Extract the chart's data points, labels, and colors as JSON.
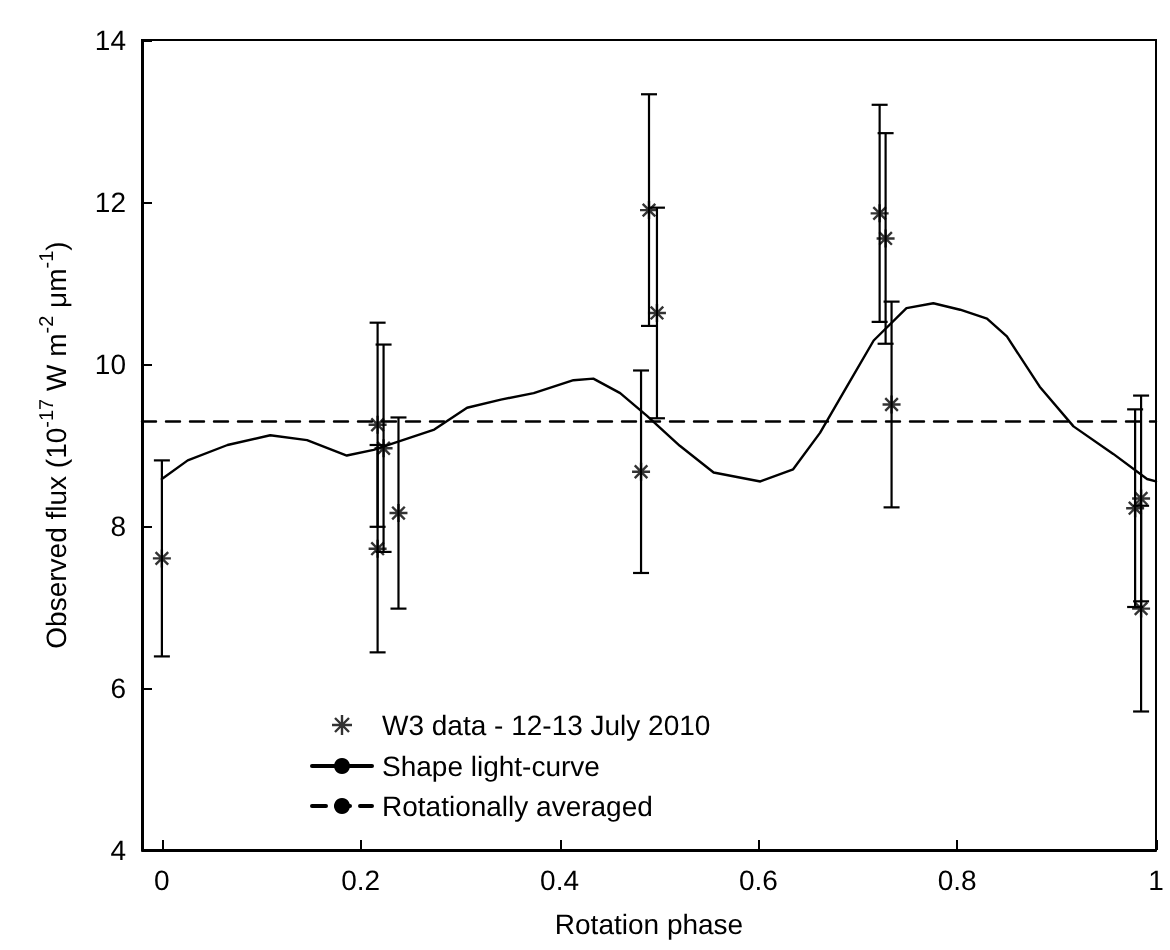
{
  "chart_data": {
    "type": "scatter",
    "xlabel": "Rotation phase",
    "ylabel": "Observed flux (10$^{-17}$ W m$^{-2}$ μm$^{-1}$)",
    "xlim": [
      -0.02,
      1
    ],
    "xticks": [
      0,
      0.2,
      0.4,
      0.6,
      0.8,
      1
    ],
    "ylim": [
      4,
      14
    ],
    "yticks": [
      4,
      6,
      8,
      10,
      12,
      14
    ],
    "grid": false,
    "legend": "bottom",
    "series": [
      {
        "name": "W3 data - 12-13 July 2010",
        "color": "#000000",
        "marker": "cross",
        "x": [
          0.0,
          0.217,
          0.217,
          0.223,
          0.238,
          0.482,
          0.49,
          0.498,
          0.722,
          0.728,
          0.734,
          0.979,
          0.985,
          0.985
        ],
        "values": [
          7.6,
          9.25,
          7.72,
          8.96,
          8.16,
          8.67,
          11.9,
          10.63,
          11.86,
          11.55,
          9.5,
          8.22,
          8.34,
          6.98
        ],
        "errors": [
          1.21,
          1.26,
          1.28,
          1.28,
          1.18,
          1.25,
          1.43,
          1.3,
          1.34,
          1.3,
          1.27,
          1.22,
          1.27,
          1.27
        ]
      },
      {
        "name": "Shape light-curve",
        "type": "line",
        "color": "#000000",
        "marker": "none",
        "line_style": "solid",
        "x": [
          0.0,
          0.026,
          0.066,
          0.109,
          0.146,
          0.186,
          0.213,
          0.24,
          0.274,
          0.307,
          0.341,
          0.374,
          0.414,
          0.434,
          0.461,
          0.488,
          0.521,
          0.555,
          0.602,
          0.635,
          0.662,
          0.689,
          0.716,
          0.749,
          0.776,
          0.803,
          0.83,
          0.85,
          0.883,
          0.917,
          0.957,
          0.991,
          1.0
        ],
        "values": [
          8.58,
          8.81,
          9.0,
          9.12,
          9.06,
          8.87,
          8.94,
          9.05,
          9.19,
          9.46,
          9.56,
          9.64,
          9.8,
          9.82,
          9.64,
          9.36,
          8.99,
          8.66,
          8.55,
          8.7,
          9.15,
          9.72,
          10.29,
          10.69,
          10.75,
          10.67,
          10.56,
          10.34,
          9.72,
          9.23,
          8.89,
          8.58,
          8.55
        ]
      },
      {
        "name": "Rotationally averaged",
        "type": "line",
        "color": "#000000",
        "marker": "none",
        "line_style": "dashed",
        "x": [
          -0.02,
          1
        ],
        "values": [
          9.29,
          9.29
        ]
      }
    ]
  }
}
